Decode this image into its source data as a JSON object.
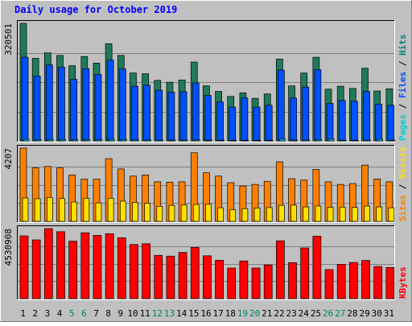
{
  "title": "Daily usage for October 2019",
  "colors": {
    "background": "#c0c0c0",
    "title": "#0000ff",
    "hits": "#008080",
    "hits_fill": "#1f7a5a",
    "files": "#0050ff",
    "pages": "#00d0d0",
    "visits": "#ffe000",
    "sites": "#ff8000",
    "kbytes": "#ff0000",
    "weekday_label": "#000000",
    "weekend_label": "#00806a"
  },
  "chart_data": [
    {
      "type": "bar",
      "panel": "top",
      "y_max_label": "320501",
      "ylim": [
        0,
        320501
      ],
      "grid": true,
      "legend": [
        {
          "key": "pages",
          "label": "Pages"
        },
        {
          "key": "sep1",
          "label": " / "
        },
        {
          "key": "files",
          "label": "Files"
        },
        {
          "key": "sep2",
          "label": " / "
        },
        {
          "key": "hits",
          "label": "Hits"
        }
      ],
      "categories": [
        "1",
        "2",
        "3",
        "4",
        "5",
        "6",
        "7",
        "8",
        "9",
        "10",
        "11",
        "12",
        "13",
        "14",
        "15",
        "16",
        "17",
        "18",
        "19",
        "20",
        "21",
        "22",
        "23",
        "24",
        "25",
        "26",
        "27",
        "28",
        "29",
        "30",
        "31"
      ],
      "weekend": [
        5,
        6,
        12,
        13,
        19,
        20,
        26,
        27
      ],
      "series": [
        {
          "name": "Hits",
          "key": "hits",
          "values": [
            320501,
            225000,
            240000,
            233000,
            205000,
            230000,
            212000,
            265000,
            233000,
            185000,
            183000,
            165000,
            160000,
            166000,
            215000,
            150000,
            135000,
            121000,
            131000,
            116000,
            128000,
            223000,
            150000,
            185000,
            228000,
            141000,
            149000,
            143000,
            198000,
            136000,
            142000
          ]
        },
        {
          "name": "Files",
          "key": "files",
          "values": [
            228000,
            177000,
            207000,
            201000,
            168000,
            197000,
            181000,
            220000,
            196000,
            149000,
            152000,
            138000,
            133000,
            134000,
            158000,
            124000,
            106000,
            92000,
            117000,
            92000,
            97000,
            193000,
            117000,
            147000,
            194000,
            102000,
            110000,
            108000,
            135000,
            100000,
            97000
          ]
        },
        {
          "name": "Pages",
          "key": "pages",
          "values": [
            4500,
            3200,
            4000,
            3800,
            3000,
            3500,
            3200,
            4200,
            3600,
            2600,
            2700,
            2300,
            2200,
            2300,
            2900,
            2000,
            1800,
            1500,
            1700,
            1500,
            1600,
            4800,
            2100,
            2600,
            3700,
            5000,
            1700,
            1800,
            2300,
            4800,
            1700
          ]
        }
      ]
    },
    {
      "type": "bar",
      "panel": "middle",
      "y_max_label": "4207",
      "ylim": [
        0,
        4207
      ],
      "grid": true,
      "legend": [
        {
          "key": "sites",
          "label": "Sites"
        },
        {
          "key": "sep1",
          "label": " / "
        },
        {
          "key": "visits",
          "label": "Visits"
        }
      ],
      "categories": [
        "1",
        "2",
        "3",
        "4",
        "5",
        "6",
        "7",
        "8",
        "9",
        "10",
        "11",
        "12",
        "13",
        "14",
        "15",
        "16",
        "17",
        "18",
        "19",
        "20",
        "21",
        "22",
        "23",
        "24",
        "25",
        "26",
        "27",
        "28",
        "29",
        "30",
        "31"
      ],
      "series": [
        {
          "name": "Sites",
          "key": "sites",
          "values": [
            4207,
            3070,
            3150,
            3070,
            2660,
            2420,
            2420,
            3600,
            3010,
            2600,
            2660,
            2270,
            2250,
            2270,
            3940,
            2790,
            2600,
            2220,
            2030,
            2120,
            2300,
            3420,
            2450,
            2370,
            2980,
            2270,
            2120,
            2170,
            3230,
            2430,
            2270
          ]
        },
        {
          "name": "Visits",
          "key": "visits",
          "values": [
            1340,
            1300,
            1370,
            1310,
            1110,
            1320,
            1060,
            1330,
            1160,
            1090,
            1040,
            860,
            920,
            950,
            970,
            980,
            780,
            670,
            730,
            770,
            790,
            920,
            930,
            830,
            880,
            810,
            820,
            800,
            880,
            830,
            780
          ]
        }
      ]
    },
    {
      "type": "bar",
      "panel": "bottom",
      "y_max_label": "4530908",
      "ylim": [
        0,
        4530908
      ],
      "grid": true,
      "legend": [
        {
          "key": "kbytes",
          "label": "KBytes"
        }
      ],
      "categories": [
        "1",
        "2",
        "3",
        "4",
        "5",
        "6",
        "7",
        "8",
        "9",
        "10",
        "11",
        "12",
        "13",
        "14",
        "15",
        "16",
        "17",
        "18",
        "19",
        "20",
        "21",
        "22",
        "23",
        "24",
        "25",
        "26",
        "27",
        "28",
        "29",
        "30",
        "31"
      ],
      "series": [
        {
          "name": "KBytes",
          "key": "kbytes",
          "values": [
            4060000,
            3800000,
            4530908,
            4330000,
            3720000,
            4260000,
            4090000,
            4200000,
            3940000,
            3500000,
            3550000,
            2800000,
            2750000,
            2990000,
            3310000,
            2770000,
            2480000,
            1980000,
            2440000,
            1980000,
            2180000,
            3740000,
            2330000,
            3280000,
            4040000,
            1880000,
            2220000,
            2340000,
            2470000,
            2080000,
            2010000
          ]
        }
      ]
    }
  ]
}
